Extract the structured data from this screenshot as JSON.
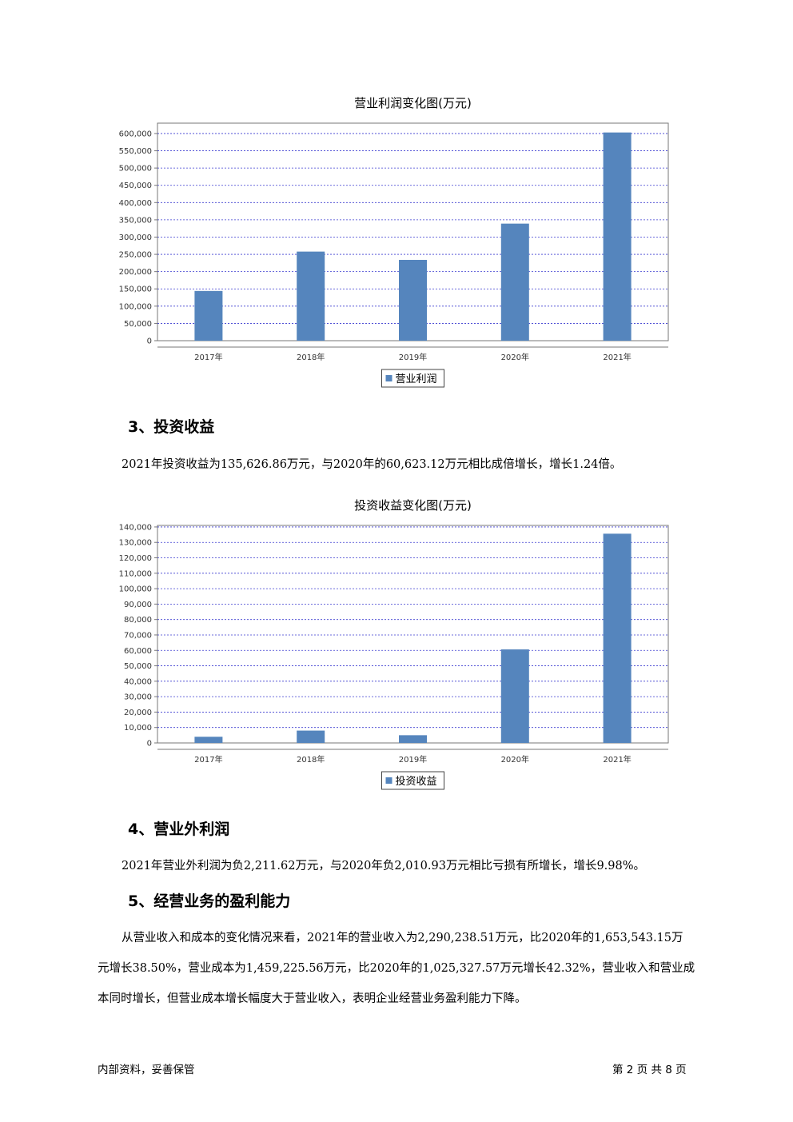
{
  "charts": [
    {
      "type": "bar",
      "title": "营业利润变化图(万元)",
      "categories": [
        "2017年",
        "2018年",
        "2019年",
        "2020年",
        "2021年"
      ],
      "series": [
        {
          "name": "营业利润",
          "values": [
            144000,
            258000,
            234000,
            339000,
            603000
          ]
        }
      ],
      "ylim": [
        0,
        630000
      ],
      "yticks": [
        0,
        50000,
        100000,
        150000,
        200000,
        250000,
        300000,
        350000,
        400000,
        450000,
        500000,
        550000,
        600000
      ],
      "ytick_labels": [
        "0",
        "50,000",
        "100,000",
        "150,000",
        "200,000",
        "250,000",
        "300,000",
        "350,000",
        "400,000",
        "450,000",
        "500,000",
        "550,000",
        "600,000"
      ],
      "grid": true,
      "legend": "bottom-center",
      "color": "#5585bd"
    },
    {
      "type": "bar",
      "title": "投资收益变化图(万元)",
      "categories": [
        "2017年",
        "2018年",
        "2019年",
        "2020年",
        "2021年"
      ],
      "series": [
        {
          "name": "投资收益",
          "values": [
            4000,
            8000,
            5000,
            60623.12,
            135626.86
          ]
        }
      ],
      "ylim": [
        0,
        141000
      ],
      "yticks": [
        0,
        10000,
        20000,
        30000,
        40000,
        50000,
        60000,
        70000,
        80000,
        90000,
        100000,
        110000,
        120000,
        130000,
        140000
      ],
      "ytick_labels": [
        "0",
        "10,000",
        "20,000",
        "30,000",
        "40,000",
        "50,000",
        "60,000",
        "70,000",
        "80,000",
        "90,000",
        "100,000",
        "110,000",
        "120,000",
        "130,000",
        "140,000"
      ],
      "grid": true,
      "legend": "bottom-center",
      "color": "#5585bd"
    }
  ],
  "sections": {
    "s3_heading": "3、投资收益",
    "s3_text": "2021年投资收益为135,626.86万元，与2020年的60,623.12万元相比成倍增长，增长1.24倍。",
    "s4_heading": "4、营业外利润",
    "s4_text": "2021年营业外利润为负2,211.62万元，与2020年负2,010.93万元相比亏损有所增长，增长9.98%。",
    "s5_heading": "5、经营业务的盈利能力",
    "s5_line1": "从营业收入和成本的变化情况来看，2021年的营业收入为2,290,238.51万元，比2020年的1,653,543.15万",
    "s5_line2": "元增长38.50%，营业成本为1,459,225.56万元，比2020年的1,025,327.57万元增长42.32%，营业收入和营业成",
    "s5_line3": "本同时增长，但营业成本增长幅度大于营业收入，表明企业经营业务盈利能力下降。"
  },
  "footer": {
    "left": "内部资料，妥善保管",
    "right": "第 2 页   共 8 页"
  }
}
